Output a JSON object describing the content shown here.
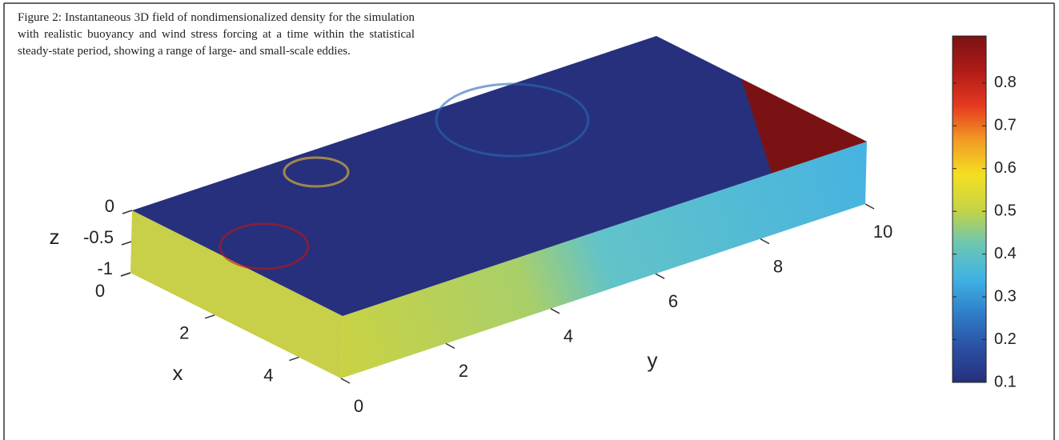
{
  "caption": "Figure 2: Instantaneous 3D field of nondimensionalized density for the simulation with realistic buoyancy and wind stress forcing at a time within the statistical steady-state period, showing a range of large- and small-scale eddies.",
  "chart_data": {
    "type": "surface3d",
    "xlabel": "x",
    "ylabel": "y",
    "zlabel": "z",
    "xlim": [
      0,
      5
    ],
    "ylim": [
      0,
      10
    ],
    "zlim": [
      -1,
      0
    ],
    "xticks": [
      0,
      2,
      4
    ],
    "yticks": [
      0,
      2,
      4,
      6,
      8,
      10
    ],
    "zticks": [
      0,
      -0.5,
      -1
    ],
    "colorbar": {
      "clim": [
        0.1,
        0.91
      ],
      "ticks": [
        0.1,
        0.2,
        0.3,
        0.4,
        0.5,
        0.6,
        0.7,
        0.8
      ],
      "colormap": [
        "#27307c",
        "#2b4fa3",
        "#2f7fc8",
        "#3fb3e3",
        "#6cc6b2",
        "#c6d443",
        "#f4df22",
        "#f29a24",
        "#e4391f",
        "#b01b18",
        "#7a1214"
      ]
    }
  }
}
